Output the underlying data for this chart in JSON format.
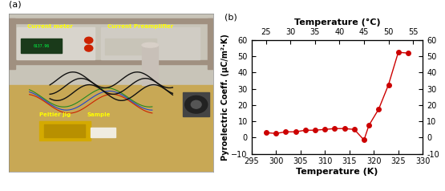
{
  "temp_K": [
    298,
    300,
    302,
    304,
    306,
    308,
    310,
    312,
    314,
    316,
    318,
    319,
    321,
    323,
    325,
    327
  ],
  "pyro_coeff": [
    3.0,
    2.5,
    3.5,
    3.5,
    4.5,
    4.5,
    5.0,
    5.5,
    5.5,
    5.0,
    -1.5,
    7.5,
    17.5,
    32.5,
    52.5,
    52.0
  ],
  "line_color": "#cc0000",
  "marker_color": "#cc0000",
  "marker_style": "o",
  "marker_size": 4,
  "xlabel_bottom": "Temperature (K)",
  "xlabel_top": "Temperature (°C)",
  "ylabel_left": "Pyroelectric Coeff. (μC/m²·K)",
  "xlim_K": [
    295,
    330
  ],
  "xlim_C": [
    22,
    57
  ],
  "ylim": [
    -10,
    60
  ],
  "xticks_K": [
    295,
    300,
    305,
    310,
    315,
    320,
    325,
    330
  ],
  "xticks_C": [
    25,
    30,
    35,
    40,
    45,
    50,
    55
  ],
  "yticks": [
    -10,
    0,
    10,
    20,
    30,
    40,
    50,
    60
  ],
  "label_fontsize": 8,
  "tick_fontsize": 7,
  "photo_bg": "#c8b89a",
  "photo_shelf_color": "#b0a888",
  "photo_table_color": "#c8a860",
  "photo_wall_color": "#d0c8b8",
  "photo_equipment_left": "#e8e0d0",
  "photo_equipment_right": "#d8d0c0",
  "label_color_yellow": "#ffff00",
  "panel_a_label": "(a)",
  "panel_b_label": "(b)"
}
